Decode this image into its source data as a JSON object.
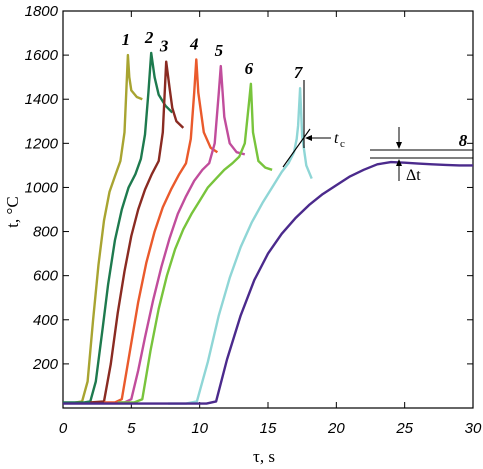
{
  "chart_data": {
    "type": "line",
    "xlabel": "τ, s",
    "ylabel": "t, °C",
    "xlim": [
      0,
      30
    ],
    "ylim": [
      0,
      1800
    ],
    "xticks": [
      0,
      5,
      10,
      15,
      20,
      25,
      30
    ],
    "yticks": [
      200,
      400,
      600,
      800,
      1000,
      1200,
      1400,
      1600,
      1800
    ],
    "grid": false,
    "annotations": {
      "tc_label": "t",
      "tc_sub": "c",
      "dt_label": "Δt"
    },
    "series": [
      {
        "name": "1",
        "color": "#a8a431",
        "x": [
          0.9,
          1.4,
          1.8,
          2.2,
          2.6,
          3.0,
          3.4,
          3.8,
          4.2,
          4.5,
          4.75,
          4.85,
          5.0,
          5.4,
          5.8
        ],
        "y": [
          25,
          30,
          120,
          400,
          650,
          850,
          980,
          1050,
          1120,
          1250,
          1600,
          1500,
          1440,
          1410,
          1400
        ]
      },
      {
        "name": "2",
        "color": "#1e7a4e",
        "x": [
          0.0,
          1.5,
          2.0,
          2.4,
          2.9,
          3.3,
          3.8,
          4.3,
          4.8,
          5.3,
          5.7,
          6.0,
          6.25,
          6.45,
          6.7,
          7.0,
          7.5,
          8.0
        ],
        "y": [
          25,
          25,
          30,
          120,
          360,
          560,
          760,
          900,
          1000,
          1060,
          1130,
          1240,
          1430,
          1610,
          1500,
          1420,
          1370,
          1340
        ]
      },
      {
        "name": "3",
        "color": "#8a2b22",
        "x": [
          2.0,
          3.0,
          3.5,
          4.0,
          4.5,
          5.0,
          5.5,
          6.0,
          6.5,
          7.0,
          7.3,
          7.55,
          7.8,
          8.0,
          8.3,
          8.8
        ],
        "y": [
          25,
          30,
          200,
          430,
          620,
          780,
          900,
          990,
          1060,
          1120,
          1250,
          1570,
          1450,
          1360,
          1300,
          1270
        ]
      },
      {
        "name": "4",
        "color": "#ea5a2c",
        "x": [
          3.0,
          3.8,
          4.3,
          4.9,
          5.5,
          6.1,
          6.7,
          7.3,
          7.9,
          8.5,
          9.0,
          9.35,
          9.6,
          9.75,
          9.9,
          10.3,
          10.8,
          11.3
        ],
        "y": [
          25,
          25,
          40,
          260,
          480,
          660,
          800,
          910,
          990,
          1060,
          1110,
          1220,
          1430,
          1580,
          1430,
          1250,
          1180,
          1160
        ]
      },
      {
        "name": "5",
        "color": "#c14d9c",
        "x": [
          4.0,
          4.5,
          5.0,
          5.5,
          6.0,
          6.6,
          7.2,
          7.8,
          8.4,
          9.0,
          9.6,
          10.2,
          10.7,
          11.1,
          11.4,
          11.55,
          11.8,
          12.2,
          12.7,
          13.3
        ],
        "y": [
          25,
          25,
          40,
          170,
          320,
          490,
          640,
          770,
          880,
          960,
          1030,
          1080,
          1110,
          1200,
          1430,
          1550,
          1320,
          1200,
          1160,
          1150
        ]
      },
      {
        "name": "6",
        "color": "#78c43c",
        "x": [
          4.0,
          5.2,
          5.8,
          6.4,
          7.0,
          7.6,
          8.2,
          8.8,
          9.4,
          10.0,
          10.6,
          11.2,
          11.8,
          12.4,
          12.9,
          13.3,
          13.6,
          13.75,
          13.9,
          14.3,
          14.8,
          15.3
        ],
        "y": [
          25,
          25,
          40,
          260,
          450,
          600,
          720,
          810,
          880,
          940,
          1000,
          1040,
          1080,
          1110,
          1140,
          1200,
          1380,
          1470,
          1250,
          1120,
          1090,
          1080
        ]
      },
      {
        "name": "7",
        "color": "#8fd6d6",
        "x": [
          7.7,
          9.0,
          9.8,
          10.6,
          11.4,
          12.2,
          13.0,
          13.8,
          14.6,
          15.4,
          16.0,
          16.5,
          16.9,
          17.1,
          17.2,
          17.35,
          17.5,
          17.8,
          18.2
        ],
        "y": [
          20,
          20,
          30,
          210,
          420,
          590,
          730,
          840,
          930,
          1010,
          1070,
          1110,
          1160,
          1220,
          1280,
          1450,
          1230,
          1100,
          1040
        ]
      },
      {
        "name": "8",
        "color": "#4b2a8c",
        "x": [
          0.0,
          10.5,
          11.2,
          12.0,
          13.0,
          14.0,
          15.0,
          16.0,
          17.0,
          18.0,
          19.0,
          20.0,
          21.0,
          22.0,
          23.0,
          24.0,
          25.0,
          26.0,
          27.0,
          28.0,
          29.0,
          30.0
        ],
        "y": [
          20,
          20,
          30,
          220,
          420,
          580,
          700,
          790,
          860,
          920,
          970,
          1010,
          1050,
          1080,
          1105,
          1115,
          1112,
          1108,
          1105,
          1102,
          1100,
          1100
        ]
      }
    ]
  }
}
